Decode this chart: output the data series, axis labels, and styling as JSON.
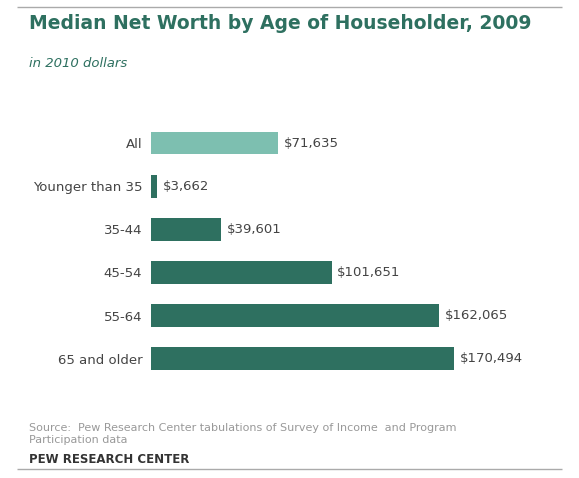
{
  "title": "Median Net Worth by Age of Householder, 2009",
  "subtitle": "in 2010 dollars",
  "categories": [
    "All",
    "Younger than 35",
    "35-44",
    "45-54",
    "55-64",
    "65 and older"
  ],
  "values": [
    71635,
    3662,
    39601,
    101651,
    162065,
    170494
  ],
  "labels": [
    "$71,635",
    "$3,662",
    "$39,601",
    "$101,651",
    "$162,065",
    "$170,494"
  ],
  "bar_colors": [
    "#7dbfb0",
    "#2e7060",
    "#2e7060",
    "#2e7060",
    "#2e7060",
    "#2e7060"
  ],
  "max_value": 195000,
  "bg_color": "#ffffff",
  "title_color": "#2e7060",
  "subtitle_color": "#2e7060",
  "source_text": "Source:  Pew Research Center tabulations of Survey of Income  and Program\nParticipation data",
  "source_label": "PEW RESEARCH CENTER",
  "source_color": "#999999",
  "label_color": "#444444",
  "line_color": "#aaaaaa",
  "title_fontsize": 13.5,
  "subtitle_fontsize": 9.5,
  "tick_fontsize": 9.5,
  "value_fontsize": 9.5,
  "source_fontsize": 8,
  "pew_fontsize": 8.5
}
